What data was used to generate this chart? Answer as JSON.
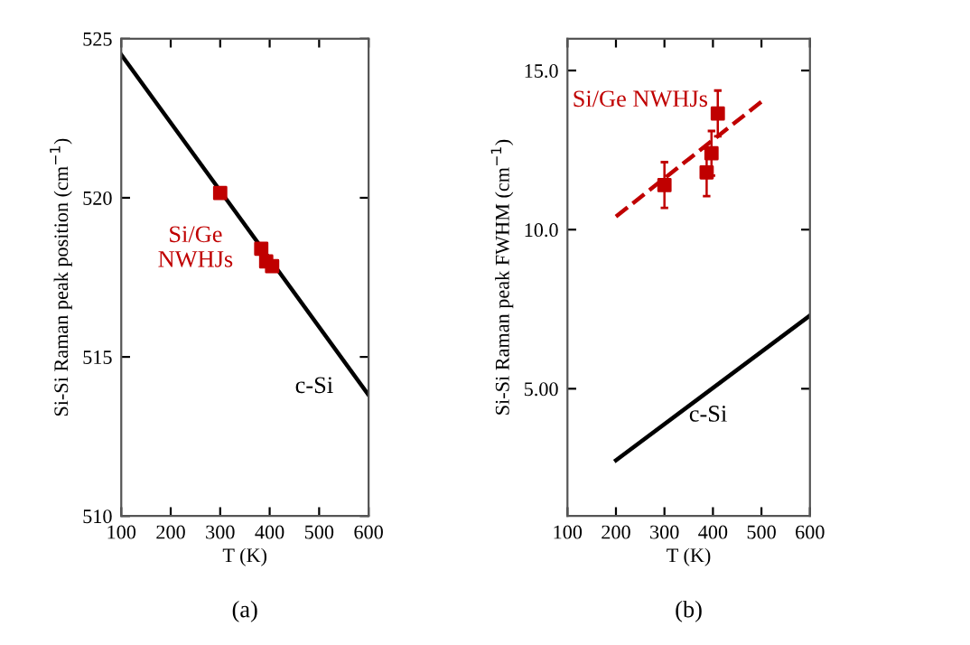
{
  "chart_data": [
    {
      "type": "line",
      "xlabel": "T (K)",
      "ylabel": "Si-Si Raman peak position (cm$^{−1}$)",
      "xlim": [
        100,
        600
      ],
      "ylim": [
        510,
        525
      ],
      "xticks": [
        100,
        200,
        300,
        400,
        500,
        600
      ],
      "yticks": [
        510,
        515,
        520,
        525
      ],
      "grid": false,
      "legend": false,
      "series": [
        {
          "color": "#000000",
          "x": [
            100,
            600
          ],
          "values": [
            524.5,
            513.8
          ],
          "line_style": "solid",
          "marker": "none"
        },
        {
          "type": "scatter",
          "color": "#c00000",
          "x": [
            300,
            383,
            393,
            405
          ],
          "values": [
            520.15,
            518.4,
            518.0,
            517.85
          ],
          "marker": "square"
        }
      ],
      "annotations": [
        "Si/Ge\nNWHJs",
        "c-Si",
        "(a)"
      ]
    },
    {
      "type": "line",
      "xlabel": "T (K)",
      "ylabel": "Si-Si Raman peak FWHM (cm$^{−1}$)",
      "xlim": [
        100,
        600
      ],
      "ylim": [
        1,
        16
      ],
      "xticks": [
        100,
        200,
        300,
        400,
        500,
        600
      ],
      "yticks": [
        {
          "value": 5,
          "label": "5.00"
        },
        {
          "value": 10,
          "label": "10.0"
        },
        {
          "value": 15,
          "label": "15.0"
        }
      ],
      "grid": false,
      "legend": false,
      "series": [
        {
          "color": "#c00000",
          "x": [
            200,
            505
          ],
          "values": [
            10.41,
            14.08
          ],
          "line_style": "dashed",
          "marker": "none"
        },
        {
          "color": "#000000",
          "x": [
            200,
            600
          ],
          "values": [
            2.75,
            7.3
          ],
          "line_style": "solid",
          "marker": "none"
        },
        {
          "type": "scatter",
          "color": "#c00000",
          "x": [
            300,
            387,
            397,
            410
          ],
          "values": [
            11.4,
            11.8,
            12.4,
            13.65
          ],
          "errors": [
            0.72,
            0.75,
            0.7,
            0.72
          ],
          "marker": "square"
        }
      ],
      "annotations": [
        "Si/Ge NWHJs",
        "c-Si",
        "(b)"
      ]
    }
  ]
}
